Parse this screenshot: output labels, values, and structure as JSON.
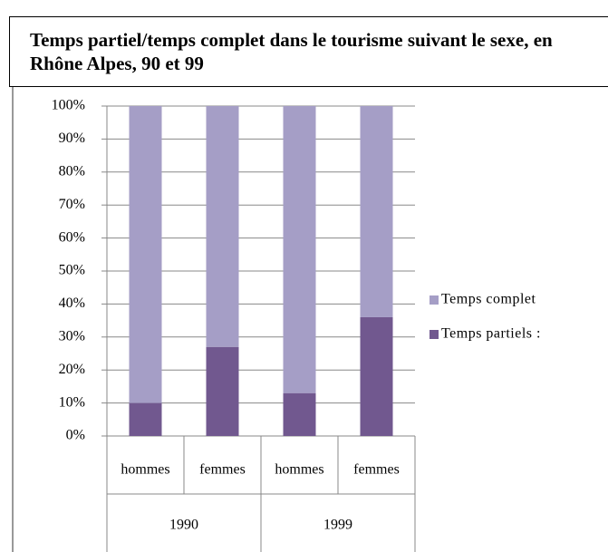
{
  "chart_data": {
    "type": "stacked_bar",
    "title": "Temps partiel/temps complet dans le tourisme suivant le sexe, en Rhône Alpes, 90 et 99",
    "categories": [
      "hommes",
      "femmes",
      "hommes",
      "femmes"
    ],
    "groups": [
      "1990",
      "1999"
    ],
    "series": [
      {
        "name": "Temps partiels :",
        "color": "#71588f",
        "values": [
          10,
          27,
          13,
          36
        ]
      },
      {
        "name": "Temps complet",
        "color": "#a59ec6",
        "values": [
          90,
          73,
          87,
          64
        ]
      }
    ],
    "ylim": [
      0,
      100
    ],
    "yticks": [
      {
        "value": 0,
        "label": "0%"
      },
      {
        "value": 10,
        "label": "10%"
      },
      {
        "value": 20,
        "label": "20%"
      },
      {
        "value": 30,
        "label": "30%"
      },
      {
        "value": 40,
        "label": "40%"
      },
      {
        "value": 50,
        "label": "50%"
      },
      {
        "value": 60,
        "label": "60%"
      },
      {
        "value": 70,
        "label": "70%"
      },
      {
        "value": 80,
        "label": "80%"
      },
      {
        "value": 90,
        "label": "90%"
      },
      {
        "value": 100,
        "label": "100%"
      }
    ],
    "grid": true
  }
}
